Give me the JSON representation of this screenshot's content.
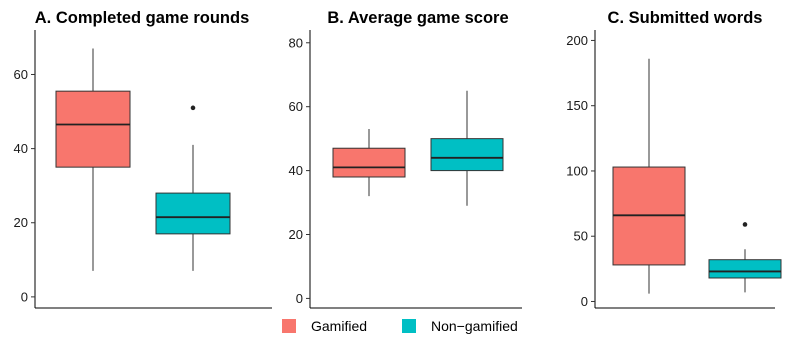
{
  "chart_data": [
    {
      "type": "box",
      "title": "A. Completed game rounds",
      "xlabel": "",
      "ylabel": "",
      "ylim": [
        -3,
        72
      ],
      "yticks": [
        0,
        20,
        40,
        60
      ],
      "series": [
        {
          "name": "Gamified",
          "color": "#F8766D",
          "min": 7,
          "q1": 35,
          "median": 46.5,
          "q3": 55.5,
          "max": 67,
          "outliers": []
        },
        {
          "name": "Non-gamified",
          "color": "#00BFC4",
          "min": 7,
          "q1": 17,
          "median": 21.5,
          "q3": 28,
          "max": 41,
          "outliers": [
            51
          ]
        }
      ]
    },
    {
      "type": "box",
      "title": "B. Average game score",
      "xlabel": "",
      "ylabel": "",
      "ylim": [
        -3,
        84
      ],
      "yticks": [
        0,
        20,
        40,
        60,
        80
      ],
      "series": [
        {
          "name": "Gamified",
          "color": "#F8766D",
          "min": 32,
          "q1": 38,
          "median": 41,
          "q3": 47,
          "max": 53,
          "outliers": []
        },
        {
          "name": "Non-gamified",
          "color": "#00BFC4",
          "min": 29,
          "q1": 40,
          "median": 44,
          "q3": 50,
          "max": 65,
          "outliers": []
        }
      ]
    },
    {
      "type": "box",
      "title": "C. Submitted words",
      "xlabel": "",
      "ylabel": "",
      "ylim": [
        -5,
        208
      ],
      "yticks": [
        0,
        50,
        100,
        150,
        200
      ],
      "series": [
        {
          "name": "Gamified",
          "color": "#F8766D",
          "min": 6,
          "q1": 28,
          "median": 66,
          "q3": 103,
          "max": 186,
          "outliers": []
        },
        {
          "name": "Non-gamified",
          "color": "#00BFC4",
          "min": 7,
          "q1": 18,
          "median": 23,
          "q3": 32,
          "max": 40,
          "outliers": [
            59
          ]
        }
      ]
    }
  ],
  "legend": {
    "placement": "bottom",
    "items": [
      {
        "label": "Gamified",
        "color": "#F8766D"
      },
      {
        "label": "Non−gamified",
        "color": "#00BFC4"
      }
    ]
  }
}
